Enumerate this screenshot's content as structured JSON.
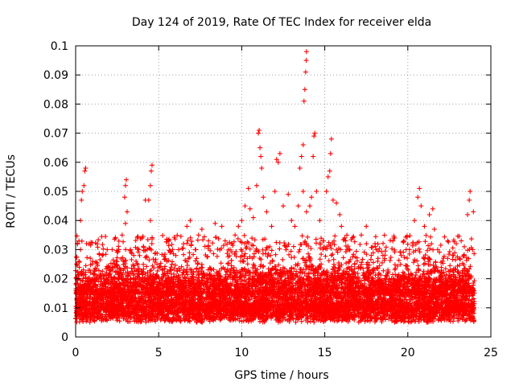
{
  "chart_data": {
    "type": "scatter",
    "title": "Day 124 of 2019, Rate Of TEC Index for receiver elda",
    "xlabel": "GPS time / hours",
    "ylabel": "ROTI / TECUs",
    "xlim": [
      0,
      25
    ],
    "ylim": [
      0,
      0.1
    ],
    "xticks": [
      0,
      5,
      10,
      15,
      20,
      25
    ],
    "yticks": [
      0,
      0.01,
      0.02,
      0.03,
      0.04,
      0.05,
      0.06,
      0.07,
      0.08,
      0.09,
      0.1
    ],
    "xtick_labels": [
      "0",
      "5",
      "10",
      "15",
      "20",
      "25"
    ],
    "ytick_labels": [
      "0",
      "0.01",
      "0.02",
      "0.03",
      "0.04",
      "0.05",
      "0.06",
      "0.07",
      "0.08",
      "0.09",
      "0.1"
    ],
    "grid": true,
    "marker": "+",
    "series": [
      {
        "name": "ROTI",
        "color": "#ff0000",
        "points": [
          [
            0.1,
            0.012
          ],
          [
            0.2,
            0.033
          ],
          [
            0.3,
            0.04
          ],
          [
            0.35,
            0.047
          ],
          [
            0.4,
            0.05
          ],
          [
            0.5,
            0.052
          ],
          [
            0.55,
            0.057
          ],
          [
            0.6,
            0.058
          ],
          [
            0.2,
            0.026
          ],
          [
            0.3,
            0.03
          ],
          [
            0.8,
            0.032
          ],
          [
            1.3,
            0.032
          ],
          [
            1.6,
            0.028
          ],
          [
            1.9,
            0.03
          ],
          [
            2.2,
            0.03
          ],
          [
            2.4,
            0.034
          ],
          [
            2.6,
            0.03
          ],
          [
            2.8,
            0.035
          ],
          [
            2.95,
            0.048
          ],
          [
            3.0,
            0.052
          ],
          [
            3.05,
            0.054
          ],
          [
            3.1,
            0.043
          ],
          [
            3.0,
            0.039
          ],
          [
            3.3,
            0.03
          ],
          [
            3.5,
            0.028
          ],
          [
            3.8,
            0.03
          ],
          [
            4.0,
            0.034
          ],
          [
            4.2,
            0.047
          ],
          [
            4.4,
            0.047
          ],
          [
            4.5,
            0.052
          ],
          [
            4.55,
            0.057
          ],
          [
            4.6,
            0.059
          ],
          [
            4.5,
            0.04
          ],
          [
            4.3,
            0.03
          ],
          [
            4.9,
            0.025
          ],
          [
            5.4,
            0.027
          ],
          [
            5.8,
            0.025
          ],
          [
            6.2,
            0.03
          ],
          [
            6.5,
            0.032
          ],
          [
            6.7,
            0.038
          ],
          [
            6.9,
            0.04
          ],
          [
            7.2,
            0.03
          ],
          [
            7.4,
            0.035
          ],
          [
            7.6,
            0.037
          ],
          [
            8.0,
            0.033
          ],
          [
            8.4,
            0.039
          ],
          [
            8.8,
            0.038
          ],
          [
            9.0,
            0.033
          ],
          [
            9.3,
            0.03
          ],
          [
            9.6,
            0.035
          ],
          [
            9.8,
            0.038
          ],
          [
            10.0,
            0.04
          ],
          [
            10.2,
            0.045
          ],
          [
            10.4,
            0.051
          ],
          [
            10.5,
            0.044
          ],
          [
            10.7,
            0.041
          ],
          [
            10.9,
            0.052
          ],
          [
            11.0,
            0.07
          ],
          [
            11.05,
            0.071
          ],
          [
            11.1,
            0.065
          ],
          [
            11.15,
            0.062
          ],
          [
            11.2,
            0.058
          ],
          [
            11.3,
            0.048
          ],
          [
            11.5,
            0.043
          ],
          [
            11.8,
            0.038
          ],
          [
            12.1,
            0.061
          ],
          [
            12.2,
            0.06
          ],
          [
            12.3,
            0.063
          ],
          [
            12.0,
            0.05
          ],
          [
            12.5,
            0.045
          ],
          [
            12.8,
            0.049
          ],
          [
            13.0,
            0.04
          ],
          [
            13.2,
            0.038
          ],
          [
            13.4,
            0.045
          ],
          [
            13.5,
            0.058
          ],
          [
            13.6,
            0.062
          ],
          [
            13.7,
            0.066
          ],
          [
            13.75,
            0.081
          ],
          [
            13.8,
            0.085
          ],
          [
            13.85,
            0.091
          ],
          [
            13.88,
            0.095
          ],
          [
            13.9,
            0.098
          ],
          [
            13.7,
            0.05
          ],
          [
            13.9,
            0.043
          ],
          [
            14.1,
            0.045
          ],
          [
            14.2,
            0.048
          ],
          [
            14.3,
            0.062
          ],
          [
            14.35,
            0.069
          ],
          [
            14.4,
            0.07
          ],
          [
            14.5,
            0.05
          ],
          [
            14.7,
            0.04
          ],
          [
            14.9,
            0.033
          ],
          [
            15.1,
            0.05
          ],
          [
            15.2,
            0.055
          ],
          [
            15.3,
            0.057
          ],
          [
            15.35,
            0.063
          ],
          [
            15.4,
            0.068
          ],
          [
            15.5,
            0.047
          ],
          [
            15.7,
            0.046
          ],
          [
            15.9,
            0.042
          ],
          [
            16.0,
            0.038
          ],
          [
            16.2,
            0.034
          ],
          [
            16.5,
            0.03
          ],
          [
            16.8,
            0.025
          ],
          [
            17.2,
            0.035
          ],
          [
            17.5,
            0.038
          ],
          [
            17.8,
            0.028
          ],
          [
            18.1,
            0.03
          ],
          [
            18.5,
            0.028
          ],
          [
            18.8,
            0.023
          ],
          [
            19.2,
            0.034
          ],
          [
            19.6,
            0.028
          ],
          [
            19.9,
            0.03
          ],
          [
            20.1,
            0.03
          ],
          [
            20.4,
            0.04
          ],
          [
            20.6,
            0.048
          ],
          [
            20.7,
            0.051
          ],
          [
            20.8,
            0.045
          ],
          [
            21.0,
            0.038
          ],
          [
            21.3,
            0.042
          ],
          [
            21.5,
            0.044
          ],
          [
            21.6,
            0.037
          ],
          [
            21.8,
            0.03
          ],
          [
            22.1,
            0.026
          ],
          [
            22.4,
            0.033
          ],
          [
            22.7,
            0.028
          ],
          [
            23.1,
            0.027
          ],
          [
            23.4,
            0.031
          ],
          [
            23.6,
            0.042
          ],
          [
            23.7,
            0.047
          ],
          [
            23.75,
            0.05
          ],
          [
            23.9,
            0.03
          ],
          [
            23.95,
            0.043
          ]
        ]
      }
    ],
    "background_band": {
      "note": "dense red cluster of low ROTI values across all hours",
      "y_typical_range": [
        0.005,
        0.02
      ],
      "x_range": [
        0,
        24
      ]
    }
  }
}
